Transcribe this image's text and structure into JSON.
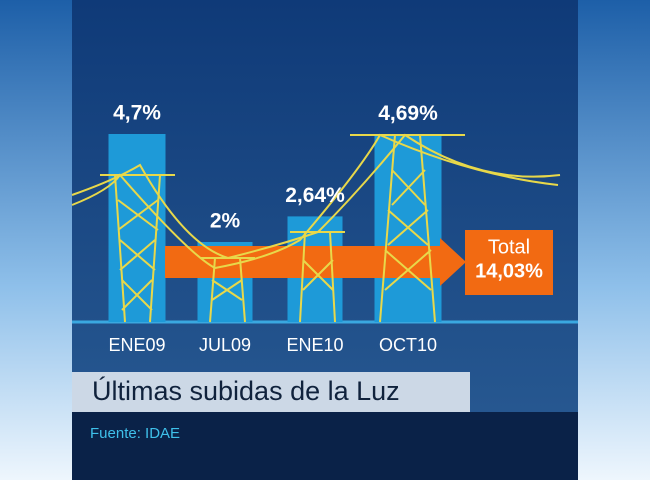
{
  "chart_data": {
    "type": "bar",
    "title": "Últimas subidas de la Luz",
    "source": "Fuente:  IDAE",
    "categories": [
      "ENE09",
      "JUL09",
      "ENE10",
      "OCT10"
    ],
    "values": [
      4.7,
      2,
      2.64,
      4.69
    ],
    "value_labels": [
      "4,7%",
      "2%",
      "2,64%",
      "4,69%"
    ],
    "color": "#1e9ad8",
    "total": {
      "label": "Total",
      "value": 14.03,
      "value_label": "14,03%",
      "color": "#f26a12"
    }
  }
}
